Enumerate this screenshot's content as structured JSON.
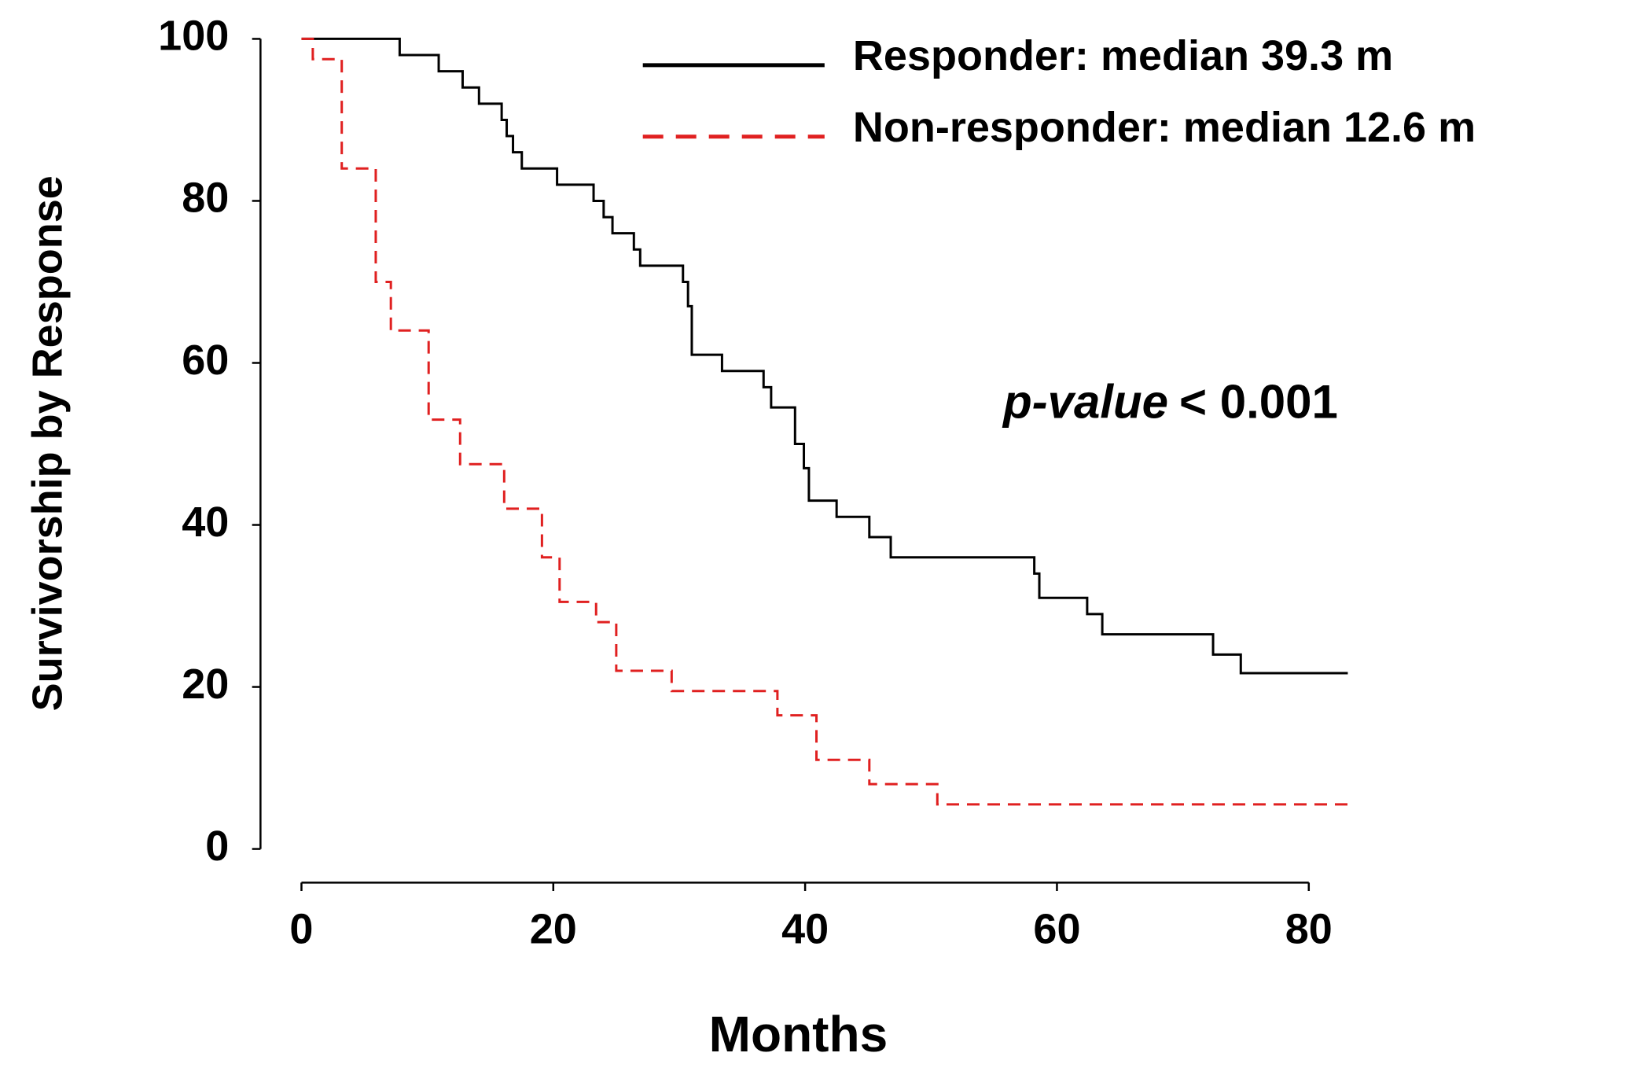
{
  "chart_data": {
    "type": "line",
    "x_label": "Months",
    "y_label": "Survivorship by Response",
    "annotation": {
      "italic": "p-value",
      "text": "< 0.001"
    },
    "xlim": [
      0,
      80
    ],
    "xticks": [
      0,
      20,
      40,
      60,
      80
    ],
    "ylim": [
      0,
      100
    ],
    "yticks": [
      0,
      20,
      40,
      60,
      80,
      100
    ],
    "series": [
      {
        "name": "Responder: median 39.3 m",
        "color": "#000000",
        "style": "solid",
        "x": [
          0,
          7.8,
          7.8,
          10.9,
          10.9,
          12.8,
          12.8,
          14.1,
          14.1,
          15.9,
          15.9,
          16.3,
          16.3,
          16.8,
          16.8,
          17.5,
          17.5,
          20.3,
          20.3,
          23.2,
          23.2,
          24,
          24,
          24.7,
          24.7,
          26.4,
          26.4,
          26.9,
          26.9,
          30.3,
          30.3,
          30.7,
          30.7,
          31,
          31,
          33.4,
          33.4,
          36.7,
          36.7,
          37.3,
          37.3,
          39.2,
          39.2,
          39.9,
          39.9,
          40.3,
          40.3,
          42.5,
          42.5,
          45.1,
          45.1,
          46.8,
          46.8,
          58.2,
          58.2,
          58.6,
          58.6,
          62.4,
          62.4,
          63.6,
          63.6,
          72.4,
          72.4,
          74.6,
          74.6,
          83.1
        ],
        "values": [
          100,
          100,
          98,
          98,
          96,
          96,
          94,
          94,
          92,
          92,
          90,
          90,
          88,
          88,
          86,
          86,
          84,
          84,
          82,
          82,
          80,
          80,
          78,
          78,
          76,
          76,
          74,
          74,
          72,
          72,
          70,
          70,
          67,
          67,
          61,
          61,
          59,
          59,
          57,
          57,
          54.5,
          54.5,
          50,
          50,
          47,
          47,
          43,
          43,
          41,
          41,
          38.5,
          38.5,
          36,
          36,
          34,
          34,
          31,
          31,
          29,
          29,
          26.5,
          26.5,
          24,
          24,
          21.7,
          21.7
        ]
      },
      {
        "name": "Non-responder: median 12.6 m",
        "color": "#e02020",
        "style": "dashed",
        "x": [
          0,
          0.9,
          0.9,
          3.2,
          3.2,
          5.9,
          5.9,
          7.1,
          7.1,
          10.1,
          10.1,
          12.6,
          12.6,
          16.1,
          16.1,
          19.1,
          19.1,
          20.5,
          20.5,
          23.4,
          23.4,
          25,
          25,
          29.4,
          29.4,
          37.8,
          37.8,
          40.9,
          40.9,
          45.1,
          45.1,
          50.5,
          50.5,
          83.3
        ],
        "values": [
          100,
          100,
          97.5,
          97.5,
          84,
          84,
          70,
          70,
          64,
          64,
          53,
          53,
          47.5,
          47.5,
          42,
          42,
          36,
          36,
          30.5,
          30.5,
          28,
          28,
          22,
          22,
          19.5,
          19.5,
          16.5,
          16.5,
          11,
          11,
          8,
          8,
          5.5,
          5.5
        ]
      }
    ]
  }
}
